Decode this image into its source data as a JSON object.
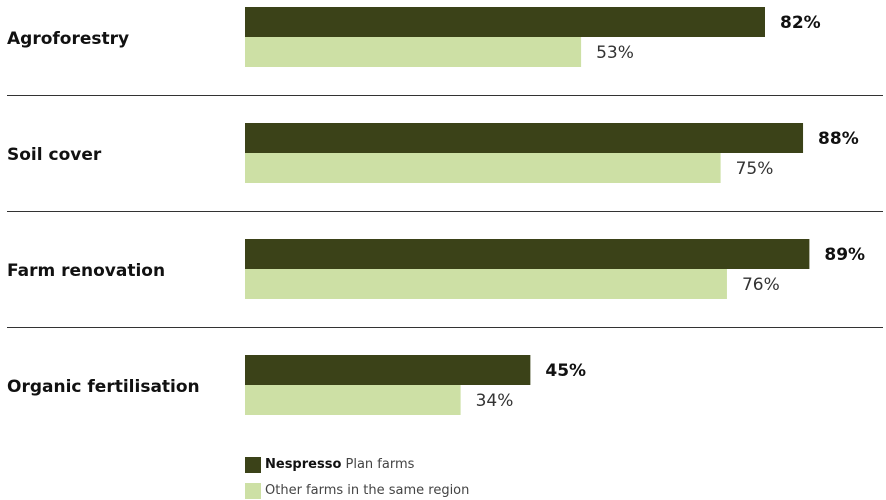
{
  "colors": {
    "nespresso": "#3b4218",
    "other": "#cde0a5"
  },
  "legend": [
    {
      "bold": "Nespresso",
      "text": " Plan farms",
      "color_key": "nespresso"
    },
    {
      "bold": "",
      "text": "Other farms in the same region",
      "color_key": "other"
    }
  ],
  "chart_data": {
    "type": "bar",
    "orientation": "horizontal",
    "categories": [
      "Agroforestry",
      "Soil cover",
      "Farm renovation",
      "Organic fertilisation"
    ],
    "series": [
      {
        "name": "Nespresso Plan farms",
        "values": [
          82,
          88,
          89,
          45
        ],
        "labels": [
          "82%",
          "88%",
          "89%",
          "45%"
        ]
      },
      {
        "name": "Other farms in the same region",
        "values": [
          53,
          75,
          76,
          34
        ],
        "labels": [
          "53%",
          "75%",
          "76%",
          "34%"
        ]
      }
    ],
    "xlim": [
      0,
      100
    ],
    "grid": false,
    "legend_position": "bottom"
  }
}
